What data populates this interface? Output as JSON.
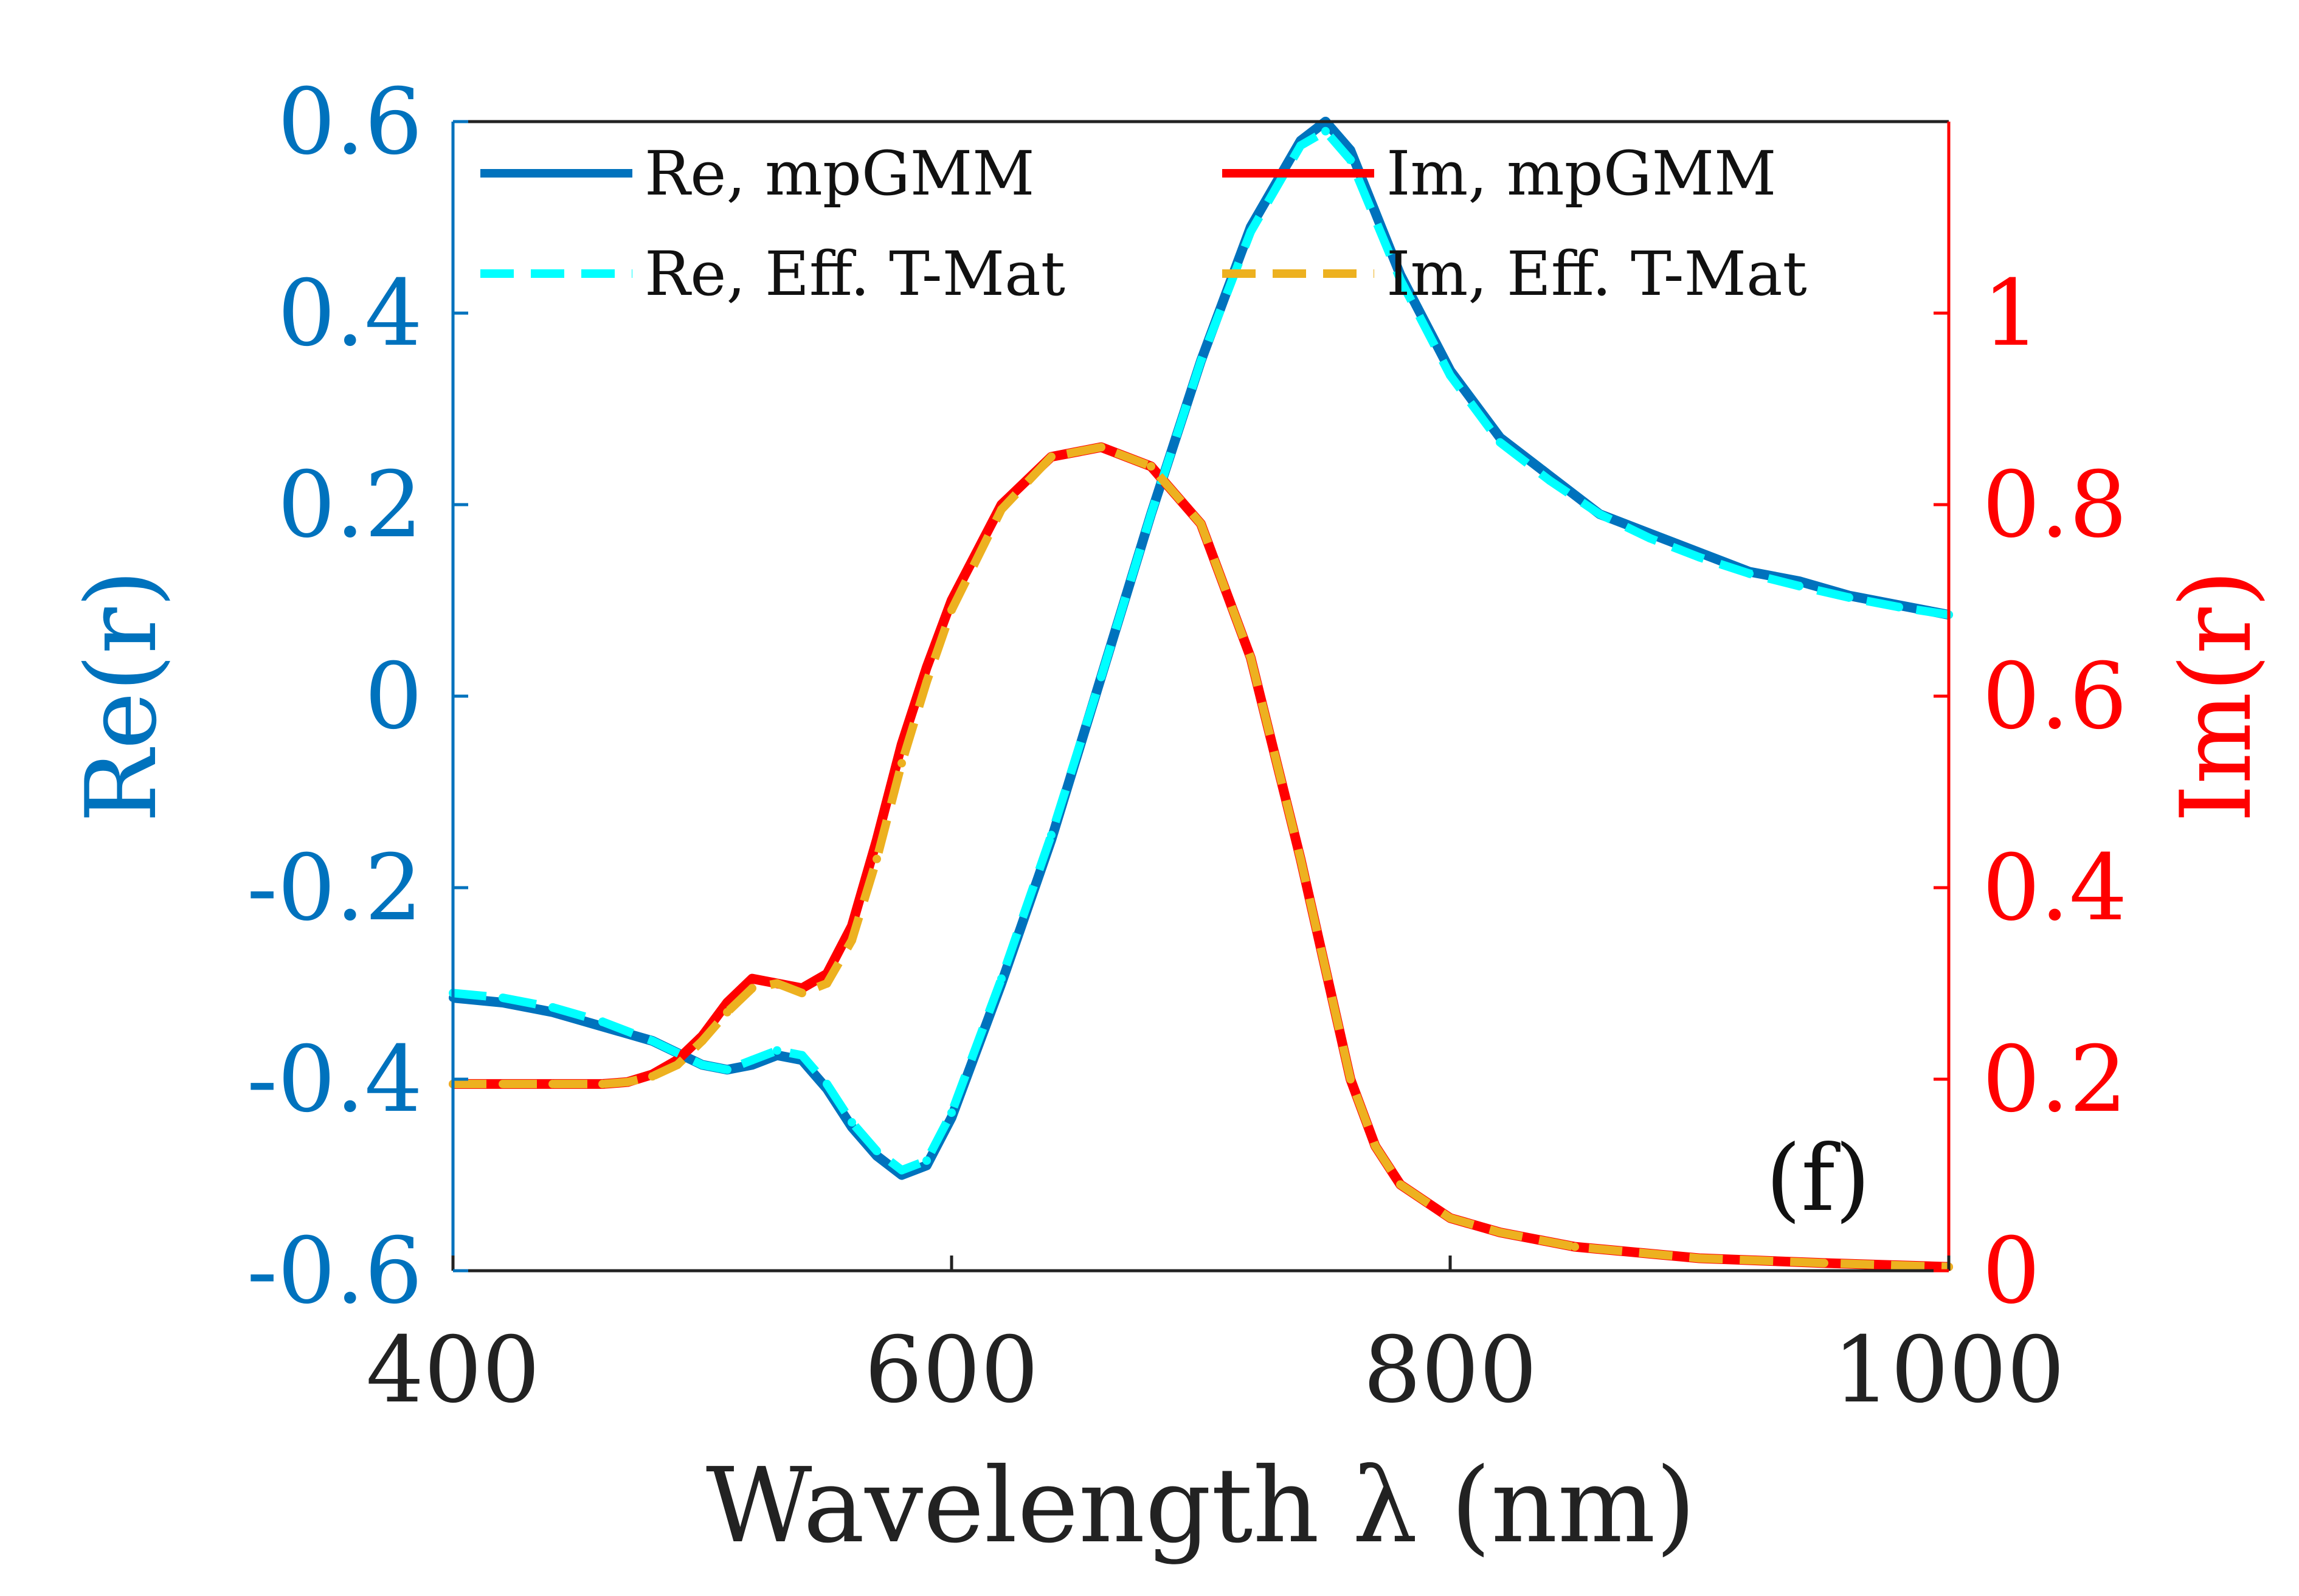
{
  "chart_data": {
    "type": "line",
    "panel_label": "(f)",
    "x_axis": {
      "label": "Wavelength λ (nm)",
      "range": [
        400,
        1000
      ],
      "ticks": [
        400,
        600,
        800,
        1000
      ],
      "tick_labels": [
        "400",
        "600",
        "800",
        "1000"
      ]
    },
    "y_left": {
      "label": "Re(r)",
      "range": [
        -0.6,
        0.6
      ],
      "ticks": [
        -0.6,
        -0.4,
        -0.2,
        0,
        0.2,
        0.4,
        0.6
      ],
      "tick_labels": [
        "-0.6",
        "-0.4",
        "-0.2",
        "0",
        "0.2",
        "0.4",
        "0.6"
      ],
      "color": "#0072BD"
    },
    "y_right": {
      "label": "Im(r)",
      "range": [
        0,
        1.2
      ],
      "ticks": [
        0,
        0.2,
        0.4,
        0.6,
        0.8,
        1
      ],
      "tick_labels": [
        "0",
        "0.2",
        "0.4",
        "0.6",
        "0.8",
        "1"
      ],
      "color": "#FF0000"
    },
    "legend": {
      "placement": "top",
      "entries": [
        {
          "label": "Re, mpGMM",
          "color": "#0072BD",
          "style": "solid"
        },
        {
          "label": "Im, mpGMM",
          "color": "#FF0000",
          "style": "solid"
        },
        {
          "label": "Re, Eff. T-Mat",
          "color": "#00FFFF",
          "style": "dashed"
        },
        {
          "label": "Im, Eff. T-Mat",
          "color": "#EDB120",
          "style": "dashed"
        }
      ]
    },
    "series": [
      {
        "name": "Re, mpGMM",
        "axis": "left",
        "color": "#0072BD",
        "style": "solid",
        "x": [
          400,
          420,
          440,
          460,
          480,
          500,
          510,
          520,
          530,
          540,
          550,
          560,
          570,
          580,
          590,
          600,
          620,
          640,
          660,
          680,
          700,
          720,
          740,
          750,
          760,
          780,
          800,
          820,
          840,
          860,
          880,
          900,
          920,
          940,
          960,
          980,
          1000
        ],
        "y": [
          -0.315,
          -0.32,
          -0.33,
          -0.345,
          -0.36,
          -0.385,
          -0.39,
          -0.385,
          -0.375,
          -0.38,
          -0.41,
          -0.45,
          -0.48,
          -0.5,
          -0.49,
          -0.44,
          -0.3,
          -0.15,
          0.02,
          0.19,
          0.35,
          0.49,
          0.58,
          0.6,
          0.57,
          0.44,
          0.34,
          0.27,
          0.23,
          0.19,
          0.17,
          0.15,
          0.13,
          0.12,
          0.105,
          0.095,
          0.085
        ]
      },
      {
        "name": "Re, Eff. T-Mat",
        "axis": "left",
        "color": "#00FFFF",
        "style": "dashed",
        "x": [
          400,
          420,
          440,
          460,
          480,
          500,
          510,
          520,
          530,
          540,
          550,
          560,
          570,
          580,
          590,
          600,
          620,
          640,
          660,
          680,
          700,
          720,
          740,
          750,
          760,
          780,
          800,
          820,
          840,
          860,
          880,
          900,
          920,
          940,
          960,
          980,
          1000
        ],
        "y": [
          -0.31,
          -0.315,
          -0.325,
          -0.34,
          -0.36,
          -0.385,
          -0.39,
          -0.38,
          -0.37,
          -0.375,
          -0.405,
          -0.445,
          -0.475,
          -0.495,
          -0.485,
          -0.435,
          -0.295,
          -0.145,
          0.02,
          0.19,
          0.35,
          0.485,
          0.575,
          0.59,
          0.56,
          0.435,
          0.335,
          0.265,
          0.225,
          0.19,
          0.165,
          0.145,
          0.128,
          0.115,
          0.103,
          0.093,
          0.085
        ]
      },
      {
        "name": "Im, mpGMM",
        "axis": "right",
        "color": "#FF0000",
        "style": "solid",
        "x": [
          400,
          420,
          440,
          460,
          470,
          480,
          490,
          500,
          510,
          520,
          530,
          540,
          550,
          560,
          570,
          580,
          590,
          600,
          620,
          640,
          660,
          680,
          700,
          720,
          740,
          760,
          770,
          780,
          800,
          820,
          850,
          900,
          950,
          1000
        ],
        "y": [
          0.195,
          0.195,
          0.195,
          0.195,
          0.197,
          0.205,
          0.22,
          0.245,
          0.28,
          0.305,
          0.3,
          0.295,
          0.31,
          0.36,
          0.45,
          0.55,
          0.63,
          0.7,
          0.8,
          0.85,
          0.86,
          0.84,
          0.78,
          0.64,
          0.43,
          0.2,
          0.13,
          0.09,
          0.055,
          0.04,
          0.025,
          0.013,
          0.008,
          0.004
        ]
      },
      {
        "name": "Im, Eff. T-Mat",
        "axis": "right",
        "color": "#EDB120",
        "style": "dashed",
        "x": [
          400,
          420,
          440,
          460,
          470,
          480,
          490,
          500,
          510,
          520,
          530,
          540,
          550,
          560,
          570,
          580,
          590,
          600,
          620,
          640,
          660,
          680,
          700,
          720,
          740,
          760,
          770,
          780,
          800,
          820,
          850,
          900,
          950,
          1000
        ],
        "y": [
          0.195,
          0.195,
          0.195,
          0.195,
          0.197,
          0.203,
          0.215,
          0.24,
          0.27,
          0.295,
          0.3,
          0.29,
          0.3,
          0.345,
          0.43,
          0.53,
          0.615,
          0.69,
          0.795,
          0.85,
          0.86,
          0.84,
          0.78,
          0.64,
          0.43,
          0.2,
          0.13,
          0.09,
          0.055,
          0.04,
          0.025,
          0.013,
          0.008,
          0.004
        ]
      }
    ]
  }
}
